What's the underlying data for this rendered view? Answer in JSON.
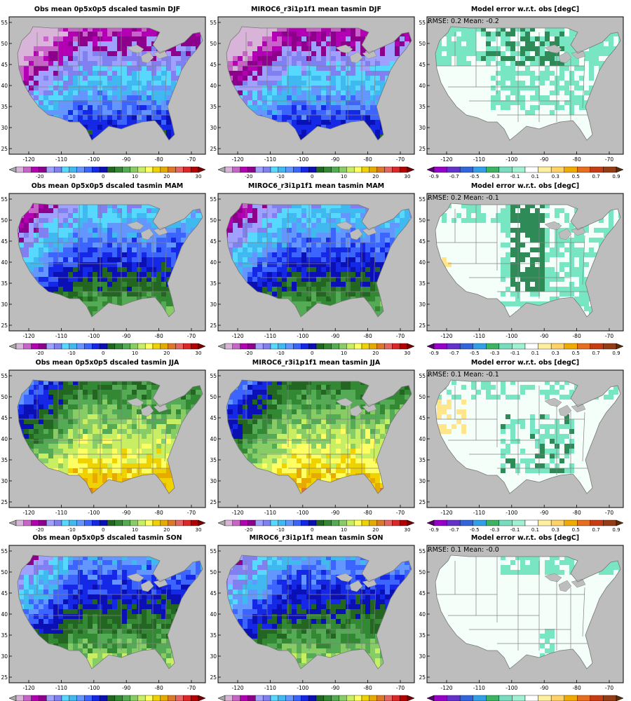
{
  "rows": [
    {
      "season": "DJF",
      "panels": [
        {
          "title": "Obs mean 0p5x0p5 dscaled tasmin DJF",
          "kind": "obs"
        },
        {
          "title": "MIROC6_r3i1p1f1 mean tasmin DJF",
          "kind": "model"
        },
        {
          "title": "Model error w.r.t. obs [degC]",
          "kind": "error",
          "stats": "RMSE: 0.2  Mean: -0.2"
        }
      ]
    },
    {
      "season": "MAM",
      "panels": [
        {
          "title": "Obs mean 0p5x0p5 dscaled tasmin MAM",
          "kind": "obs"
        },
        {
          "title": "MIROC6_r3i1p1f1 mean tasmin MAM",
          "kind": "model"
        },
        {
          "title": "Model error w.r.t. obs [degC]",
          "kind": "error",
          "stats": "RMSE: 0.2  Mean: -0.1"
        }
      ]
    },
    {
      "season": "JJA",
      "panels": [
        {
          "title": "Obs mean 0p5x0p5 dscaled tasmin JJA",
          "kind": "obs"
        },
        {
          "title": "MIROC6_r3i1p1f1 mean tasmin JJA",
          "kind": "model"
        },
        {
          "title": "Model error w.r.t. obs [degC]",
          "kind": "error",
          "stats": "RMSE: 0.1  Mean: -0.1"
        }
      ]
    },
    {
      "season": "SON",
      "panels": [
        {
          "title": "Obs mean 0p5x0p5 dscaled tasmin SON",
          "kind": "obs"
        },
        {
          "title": "MIROC6_r3i1p1f1 mean tasmin SON",
          "kind": "model"
        },
        {
          "title": "Model error w.r.t. obs [degC]",
          "kind": "error",
          "stats": "RMSE: 0.1  Mean: -0.0"
        }
      ]
    }
  ],
  "map": {
    "lon_ticks": [
      "-120",
      "-110",
      "-100",
      "-90",
      "-80",
      "-70"
    ],
    "lat_ticks": [
      "25",
      "30",
      "35",
      "40",
      "45",
      "50",
      "55"
    ]
  },
  "colorbars": {
    "temperature": {
      "labels": [
        "-20",
        "-10",
        "0",
        "10",
        "20",
        "30"
      ],
      "colors": [
        "#a8a8a8",
        "#d8b4d8",
        "#c864c8",
        "#b400b4",
        "#8c008c",
        "#a0a0ff",
        "#8080f0",
        "#56d8ff",
        "#40b8f0",
        "#6496ff",
        "#3c64ff",
        "#1428e6",
        "#0a10b4",
        "#226622",
        "#338833",
        "#55aa55",
        "#88cc66",
        "#c8ee64",
        "#ffff64",
        "#f0d200",
        "#e6aa00",
        "#dc7828",
        "#e66464",
        "#dc2828",
        "#b40000",
        "#7a0000"
      ]
    },
    "error": {
      "labels": [
        "-0.9",
        "-0.7",
        "-0.5",
        "-0.3",
        "-0.1",
        "0.1",
        "0.3",
        "0.5",
        "0.7",
        "0.9"
      ],
      "colors": [
        "#5a006e",
        "#9600c8",
        "#6432c8",
        "#3264dc",
        "#32a0e6",
        "#3cb464",
        "#78dcbe",
        "#a0f0d2",
        "#ffffff",
        "#fff0a0",
        "#ffd264",
        "#f0aa00",
        "#e66e1e",
        "#c83c14",
        "#963c14",
        "#5a2d0a"
      ]
    }
  },
  "colors": {
    "land_grey": "#bdbdbd",
    "map_frame": "#000000",
    "boundary": "#808080",
    "error_light": "#78e6c3",
    "error_dark": "#2e8b57",
    "error_white": "#f5fffa",
    "error_yellow": "#ffe68c"
  }
}
